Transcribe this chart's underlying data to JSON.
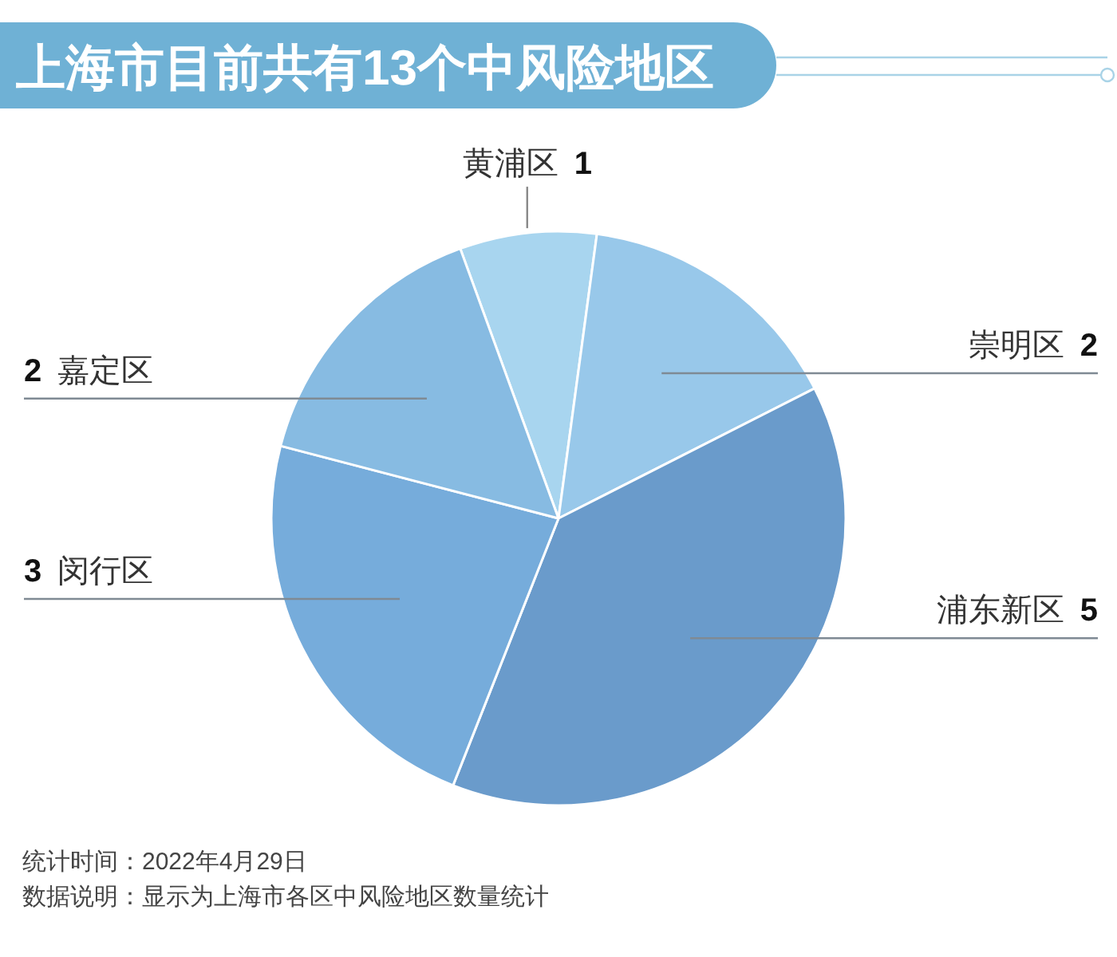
{
  "chart_data": {
    "type": "pie",
    "title": "上海市目前共有13个中风险地区",
    "categories": [
      "黄浦区",
      "崇明区",
      "浦东新区",
      "闵行区",
      "嘉定区"
    ],
    "values": [
      1,
      2,
      5,
      3,
      2
    ],
    "colors": [
      "#a8d5ef",
      "#98c8ea",
      "#6a9bcb",
      "#76acdb",
      "#87bbe2"
    ],
    "data_labels": true,
    "annotations": [
      "统计时间：2022年4月29日",
      "数据说明：显示为上海市各区中风险地区数量统计"
    ]
  }
}
